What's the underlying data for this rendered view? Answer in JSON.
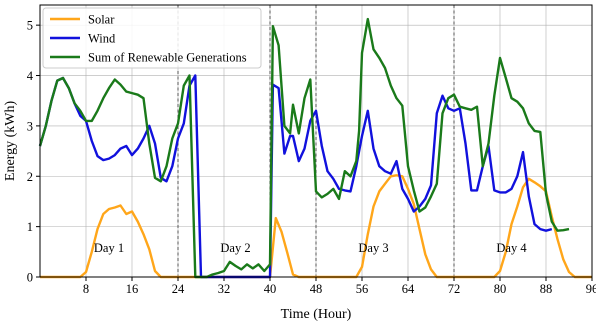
{
  "chart_data": {
    "type": "line",
    "title": "",
    "xlabel": "Time (Hour)",
    "ylabel": "Energy (kWh)",
    "xlim": [
      0,
      96
    ],
    "ylim": [
      0,
      5.4
    ],
    "xticks": [
      8,
      16,
      24,
      32,
      40,
      48,
      56,
      64,
      72,
      80,
      88,
      96
    ],
    "yticks": [
      0,
      1,
      2,
      3,
      4,
      5
    ],
    "grid": true,
    "legend_position": "upper-left",
    "day_separators": [
      24,
      40,
      48,
      72
    ],
    "day_labels": [
      {
        "text": "Day 1",
        "x": 12,
        "y": 0.5
      },
      {
        "text": "Day 2",
        "x": 34,
        "y": 0.5
      },
      {
        "text": "Day 3",
        "x": 58,
        "y": 0.5
      },
      {
        "text": "Day 4",
        "x": 82,
        "y": 0.5
      }
    ],
    "series": [
      {
        "name": "Solar",
        "color": "#ffa61a",
        "points": [
          [
            0,
            0
          ],
          [
            1,
            0
          ],
          [
            2,
            0
          ],
          [
            3,
            0
          ],
          [
            4,
            0
          ],
          [
            5,
            0
          ],
          [
            6,
            0
          ],
          [
            7,
            0
          ],
          [
            8,
            0.1
          ],
          [
            9,
            0.5
          ],
          [
            10,
            0.95
          ],
          [
            11,
            1.25
          ],
          [
            12,
            1.35
          ],
          [
            13,
            1.38
          ],
          [
            14,
            1.42
          ],
          [
            15,
            1.25
          ],
          [
            16,
            1.3
          ],
          [
            17,
            1.1
          ],
          [
            18,
            0.85
          ],
          [
            19,
            0.55
          ],
          [
            20,
            0.12
          ],
          [
            21,
            0
          ],
          [
            22,
            0
          ],
          [
            23,
            0
          ],
          [
            24,
            0
          ],
          [
            25,
            0
          ],
          [
            26,
            0
          ],
          [
            27,
            0
          ],
          [
            28,
            0
          ],
          [
            29,
            0
          ],
          [
            30,
            0
          ],
          [
            31,
            0
          ],
          [
            32,
            0
          ],
          [
            33,
            0
          ],
          [
            34,
            0
          ],
          [
            35,
            0
          ],
          [
            36,
            0
          ],
          [
            37,
            0
          ],
          [
            38,
            0
          ],
          [
            39,
            0
          ],
          [
            40,
            0
          ],
          [
            41,
            1.17
          ],
          [
            42,
            0.9
          ],
          [
            43,
            0.48
          ],
          [
            44,
            0.05
          ],
          [
            45,
            0
          ],
          [
            46,
            0
          ],
          [
            47,
            0
          ],
          [
            48,
            0
          ],
          [
            49,
            0
          ],
          [
            50,
            0
          ],
          [
            51,
            0
          ],
          [
            52,
            0
          ],
          [
            53,
            0
          ],
          [
            54,
            0
          ],
          [
            55,
            0
          ],
          [
            56,
            0.2
          ],
          [
            57,
            0.85
          ],
          [
            58,
            1.4
          ],
          [
            59,
            1.7
          ],
          [
            60,
            1.85
          ],
          [
            61,
            2.0
          ],
          [
            62,
            2.02
          ],
          [
            63,
            2.0
          ],
          [
            64,
            1.75
          ],
          [
            65,
            1.45
          ],
          [
            66,
            0.95
          ],
          [
            67,
            0.45
          ],
          [
            68,
            0.15
          ],
          [
            69,
            0
          ],
          [
            70,
            0
          ],
          [
            71,
            0
          ],
          [
            72,
            0
          ],
          [
            73,
            0
          ],
          [
            74,
            0
          ],
          [
            75,
            0
          ],
          [
            76,
            0
          ],
          [
            77,
            0
          ],
          [
            78,
            0
          ],
          [
            79,
            0
          ],
          [
            80,
            0.12
          ],
          [
            81,
            0.5
          ],
          [
            82,
            1.05
          ],
          [
            83,
            1.4
          ],
          [
            84,
            1.78
          ],
          [
            85,
            1.95
          ],
          [
            86,
            1.88
          ],
          [
            87,
            1.8
          ],
          [
            88,
            1.7
          ],
          [
            89,
            1.2
          ],
          [
            90,
            0.75
          ],
          [
            91,
            0.35
          ],
          [
            92,
            0.1
          ],
          [
            93,
            0
          ],
          [
            94,
            0
          ],
          [
            95,
            0
          ],
          [
            96,
            0
          ]
        ]
      },
      {
        "name": "Wind",
        "color": "#1111dd",
        "points": [
          [
            0,
            2.6
          ],
          [
            1,
            3.0
          ],
          [
            2,
            3.5
          ],
          [
            3,
            3.9
          ],
          [
            4,
            3.95
          ],
          [
            5,
            3.75
          ],
          [
            6,
            3.45
          ],
          [
            7,
            3.2
          ],
          [
            8,
            3.1
          ],
          [
            9,
            2.7
          ],
          [
            10,
            2.4
          ],
          [
            11,
            2.32
          ],
          [
            12,
            2.35
          ],
          [
            13,
            2.42
          ],
          [
            14,
            2.55
          ],
          [
            15,
            2.6
          ],
          [
            16,
            2.42
          ],
          [
            17,
            2.55
          ],
          [
            18,
            2.75
          ],
          [
            19,
            3.0
          ],
          [
            20,
            2.65
          ],
          [
            21,
            1.97
          ],
          [
            22,
            1.9
          ],
          [
            23,
            2.2
          ],
          [
            24,
            2.75
          ],
          [
            25,
            3.05
          ],
          [
            26,
            3.8
          ],
          [
            27,
            4.0
          ],
          [
            28,
            0
          ],
          [
            29,
            0
          ],
          [
            30,
            0
          ],
          [
            31,
            0
          ],
          [
            32,
            0
          ],
          [
            33,
            0
          ],
          [
            34,
            0
          ],
          [
            35,
            0
          ],
          [
            36,
            0
          ],
          [
            37,
            0
          ],
          [
            38,
            0
          ],
          [
            39,
            0
          ],
          [
            40,
            0
          ],
          [
            40.5,
            3.82
          ],
          [
            41.5,
            3.75
          ],
          [
            42.5,
            2.45
          ],
          [
            43.5,
            2.8
          ],
          [
            44,
            2.8
          ],
          [
            45,
            2.3
          ],
          [
            46,
            2.55
          ],
          [
            47,
            3.1
          ],
          [
            48,
            3.3
          ],
          [
            49,
            2.6
          ],
          [
            50,
            2.1
          ],
          [
            51,
            1.95
          ],
          [
            52,
            1.75
          ],
          [
            53,
            1.72
          ],
          [
            54,
            1.7
          ],
          [
            55,
            2.2
          ],
          [
            55.5,
            2.5
          ],
          [
            56,
            2.8
          ],
          [
            57,
            3.3
          ],
          [
            58,
            2.55
          ],
          [
            59,
            2.2
          ],
          [
            60,
            2.1
          ],
          [
            61,
            2.05
          ],
          [
            62,
            2.3
          ],
          [
            63,
            1.75
          ],
          [
            64,
            1.55
          ],
          [
            65,
            1.3
          ],
          [
            66,
            1.4
          ],
          [
            67,
            1.55
          ],
          [
            68,
            1.82
          ],
          [
            69,
            3.25
          ],
          [
            70,
            3.6
          ],
          [
            71,
            3.35
          ],
          [
            72,
            3.3
          ],
          [
            73,
            3.35
          ],
          [
            74,
            2.65
          ],
          [
            75,
            1.72
          ],
          [
            76,
            1.72
          ],
          [
            77,
            2.2
          ],
          [
            78,
            2.6
          ],
          [
            79,
            1.72
          ],
          [
            80,
            1.68
          ],
          [
            81,
            1.68
          ],
          [
            82,
            1.75
          ],
          [
            83,
            2.0
          ],
          [
            84,
            2.48
          ],
          [
            85,
            1.6
          ],
          [
            86,
            1.05
          ],
          [
            87,
            0.95
          ],
          [
            88,
            0.92
          ],
          [
            89,
            0.95
          ]
        ]
      },
      {
        "name": "Sum of Renewable Generations",
        "color": "#1a7a1a",
        "points": [
          [
            0,
            2.6
          ],
          [
            1,
            3.0
          ],
          [
            2,
            3.5
          ],
          [
            3,
            3.9
          ],
          [
            4,
            3.95
          ],
          [
            5,
            3.75
          ],
          [
            6,
            3.45
          ],
          [
            7,
            3.3
          ],
          [
            8,
            3.1
          ],
          [
            9,
            3.1
          ],
          [
            10,
            3.3
          ],
          [
            11,
            3.55
          ],
          [
            12,
            3.75
          ],
          [
            13,
            3.92
          ],
          [
            14,
            3.82
          ],
          [
            15,
            3.68
          ],
          [
            16,
            3.65
          ],
          [
            17,
            3.62
          ],
          [
            18,
            3.55
          ],
          [
            19,
            2.65
          ],
          [
            20,
            1.97
          ],
          [
            21,
            1.9
          ],
          [
            22,
            2.2
          ],
          [
            23,
            2.75
          ],
          [
            24,
            3.05
          ],
          [
            25,
            3.8
          ],
          [
            26,
            4.0
          ],
          [
            27,
            0
          ],
          [
            28,
            0
          ],
          [
            29,
            0
          ],
          [
            30,
            0.05
          ],
          [
            31,
            0.08
          ],
          [
            32,
            0.12
          ],
          [
            33,
            0.3
          ],
          [
            34,
            0.22
          ],
          [
            35,
            0.15
          ],
          [
            36,
            0.25
          ],
          [
            37,
            0.17
          ],
          [
            38,
            0.25
          ],
          [
            39,
            0.12
          ],
          [
            40,
            0.25
          ],
          [
            40.5,
            4.98
          ],
          [
            41.5,
            4.6
          ],
          [
            42.5,
            3.0
          ],
          [
            43.5,
            2.85
          ],
          [
            44,
            3.42
          ],
          [
            45,
            2.85
          ],
          [
            46,
            3.55
          ],
          [
            47,
            3.92
          ],
          [
            48,
            1.7
          ],
          [
            49,
            1.58
          ],
          [
            50,
            1.65
          ],
          [
            51,
            1.75
          ],
          [
            52,
            1.55
          ],
          [
            53,
            2.1
          ],
          [
            54,
            2.0
          ],
          [
            55,
            2.3
          ],
          [
            55.5,
            2.9
          ],
          [
            56,
            4.45
          ],
          [
            57,
            5.12
          ],
          [
            58,
            4.52
          ],
          [
            59,
            4.35
          ],
          [
            60,
            4.15
          ],
          [
            61,
            3.8
          ],
          [
            62,
            3.55
          ],
          [
            63,
            3.4
          ],
          [
            64,
            2.2
          ],
          [
            65,
            1.72
          ],
          [
            66,
            1.3
          ],
          [
            67,
            1.38
          ],
          [
            68,
            1.6
          ],
          [
            69,
            1.85
          ],
          [
            70,
            3.25
          ],
          [
            71,
            3.55
          ],
          [
            72,
            3.62
          ],
          [
            73,
            3.38
          ],
          [
            74,
            3.35
          ],
          [
            75,
            3.32
          ],
          [
            76,
            3.38
          ],
          [
            77,
            2.2
          ],
          [
            78,
            2.65
          ],
          [
            79,
            3.6
          ],
          [
            80,
            4.35
          ],
          [
            81,
            3.95
          ],
          [
            82,
            3.55
          ],
          [
            83,
            3.48
          ],
          [
            84,
            3.35
          ],
          [
            85,
            3.05
          ],
          [
            86,
            2.9
          ],
          [
            87,
            2.88
          ],
          [
            88,
            1.65
          ],
          [
            89,
            1.1
          ],
          [
            90,
            0.92
          ],
          [
            91,
            0.93
          ],
          [
            92,
            0.95
          ]
        ]
      }
    ]
  }
}
